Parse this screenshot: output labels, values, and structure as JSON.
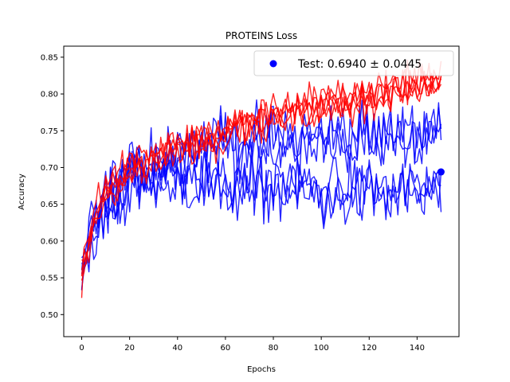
{
  "chart_data": {
    "type": "line",
    "title": "PROTEINS Loss",
    "xlabel": "Epochs",
    "ylabel": "Accuracy",
    "xlim": [
      -7.5,
      157.5
    ],
    "ylim": [
      0.47,
      0.865
    ],
    "xticks": [
      0,
      20,
      40,
      60,
      80,
      100,
      120,
      140
    ],
    "yticks": [
      0.5,
      0.55,
      0.6,
      0.65,
      0.7,
      0.75,
      0.8,
      0.85
    ],
    "grid": false,
    "epochs": 150,
    "legend": {
      "position": "top-right",
      "entries": [
        "Test: 0.6940 ± 0.0445"
      ]
    },
    "colors": {
      "train": "#ff0000",
      "validation": "#0000ff",
      "test": "#0000ff"
    },
    "series_groups": [
      {
        "role": "train",
        "color": "#ff0000",
        "count": 5,
        "anchors": [
          [
            0,
            0.55
          ],
          [
            5,
            0.63
          ],
          [
            10,
            0.67
          ],
          [
            20,
            0.7
          ],
          [
            40,
            0.73
          ],
          [
            60,
            0.75
          ],
          [
            80,
            0.77
          ],
          [
            100,
            0.785
          ],
          [
            120,
            0.8
          ],
          [
            140,
            0.815
          ],
          [
            150,
            0.82
          ]
        ]
      },
      {
        "role": "validation",
        "color": "#0000ff",
        "count": 3,
        "anchors": [
          [
            0,
            0.55
          ],
          [
            5,
            0.62
          ],
          [
            10,
            0.66
          ],
          [
            20,
            0.69
          ],
          [
            40,
            0.72
          ],
          [
            60,
            0.73
          ],
          [
            80,
            0.735
          ],
          [
            100,
            0.74
          ],
          [
            120,
            0.74
          ],
          [
            140,
            0.745
          ],
          [
            150,
            0.74
          ]
        ]
      },
      {
        "role": "validation",
        "color": "#0000ff",
        "count": 3,
        "anchors": [
          [
            0,
            0.55
          ],
          [
            5,
            0.61
          ],
          [
            10,
            0.64
          ],
          [
            20,
            0.67
          ],
          [
            40,
            0.68
          ],
          [
            60,
            0.665
          ],
          [
            80,
            0.665
          ],
          [
            100,
            0.66
          ],
          [
            120,
            0.66
          ],
          [
            140,
            0.66
          ],
          [
            150,
            0.66
          ]
        ]
      }
    ],
    "test_point": {
      "x": 150,
      "y": 0.694,
      "color": "#0000ff"
    }
  }
}
